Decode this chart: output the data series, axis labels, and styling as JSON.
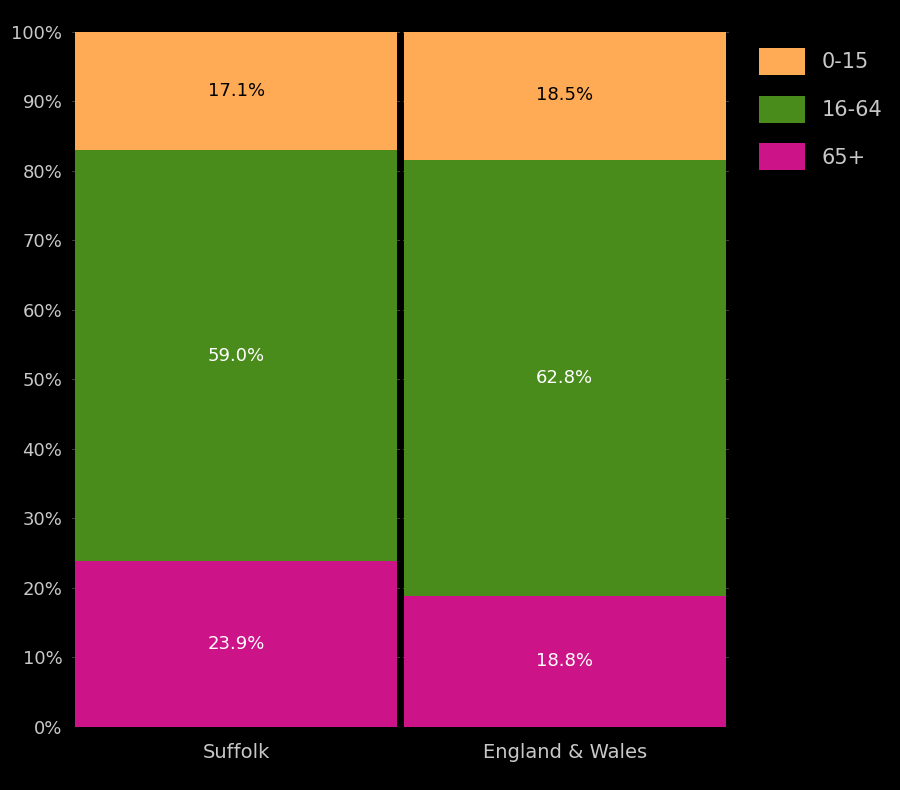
{
  "categories": [
    "Suffolk",
    "England & Wales"
  ],
  "segments": {
    "65+": [
      23.9,
      18.8
    ],
    "16-64": [
      59.0,
      62.8
    ],
    "0-15": [
      17.1,
      18.5
    ]
  },
  "colors": {
    "0-15": "#FFAA55",
    "16-64": "#4A8C1C",
    "65+": "#CC1488"
  },
  "background_color": "#000000",
  "text_color": "#C8C8C8",
  "ytick_labels": [
    "0%",
    "10%",
    "20%",
    "30%",
    "40%",
    "50%",
    "60%",
    "70%",
    "80%",
    "90%",
    "100%"
  ],
  "ylim": [
    0,
    100
  ],
  "legend_labels": [
    "0-15",
    "16-64",
    "65+"
  ],
  "label_colors": {
    "0-15": "#000000",
    "16-64": "#ffffff",
    "65+": "#ffffff"
  },
  "segment_order": [
    "65+",
    "16-64",
    "0-15"
  ],
  "bar_width": 0.98,
  "separator_color": "#000000",
  "grid_color": "#555555"
}
